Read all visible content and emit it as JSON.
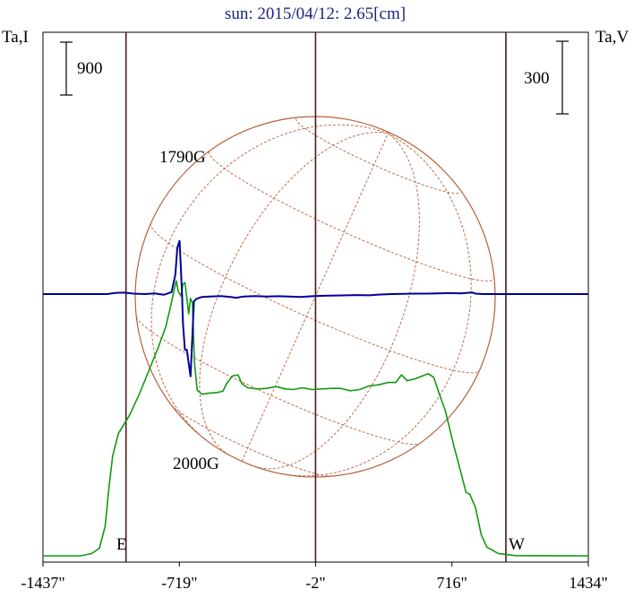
{
  "title": "sun: 2015/04/12: 2.65[cm]",
  "left_axis_label": "Ta,I",
  "right_axis_label": "Ta,V",
  "left_scale_bar": "900",
  "right_scale_bar": "300",
  "east_label": "E",
  "west_label": "W",
  "annotations": [
    "1790G",
    "2000G"
  ],
  "colors": {
    "intensity": "#119911",
    "polarization": "#000099",
    "grid_lines": "#4d1a14",
    "solar_disk": "#b5613a",
    "title": "#1a237e"
  },
  "chart_data": {
    "type": "line",
    "title": "sun: 2015/04/12: 2.65[cm]",
    "xlabel": "",
    "x_tick_labels": [
      "-1437\"",
      "-719\"",
      "-2\"",
      "716\"",
      "1434\""
    ],
    "xlim": [
      -1437,
      1434
    ],
    "series": [
      {
        "name": "Ta,I",
        "color": "#119911",
        "points": [
          [
            -1437,
            0
          ],
          [
            -1240,
            0
          ],
          [
            -1180,
            40
          ],
          [
            -1140,
            130
          ],
          [
            -1110,
            500
          ],
          [
            -1090,
            1150
          ],
          [
            -1070,
            1700
          ],
          [
            -1040,
            2080
          ],
          [
            -980,
            2400
          ],
          [
            -930,
            2750
          ],
          [
            -880,
            3150
          ],
          [
            -830,
            3550
          ],
          [
            -790,
            3900
          ],
          [
            -760,
            4320
          ],
          [
            -745,
            4550
          ],
          [
            -735,
            4680
          ],
          [
            -725,
            4500
          ],
          [
            -710,
            4420
          ],
          [
            -700,
            4620
          ],
          [
            -690,
            4650
          ],
          [
            -680,
            4400
          ],
          [
            -670,
            4120
          ],
          [
            -660,
            4380
          ],
          [
            -650,
            4310
          ],
          [
            -640,
            3300
          ],
          [
            -625,
            2820
          ],
          [
            -600,
            2750
          ],
          [
            -560,
            2770
          ],
          [
            -520,
            2780
          ],
          [
            -490,
            2800
          ],
          [
            -470,
            2930
          ],
          [
            -440,
            3060
          ],
          [
            -410,
            3080
          ],
          [
            -390,
            2930
          ],
          [
            -360,
            2860
          ],
          [
            -310,
            2840
          ],
          [
            -260,
            2850
          ],
          [
            -210,
            2880
          ],
          [
            -160,
            2840
          ],
          [
            -120,
            2830
          ],
          [
            -70,
            2860
          ],
          [
            -20,
            2830
          ],
          [
            30,
            2840
          ],
          [
            80,
            2850
          ],
          [
            130,
            2850
          ],
          [
            180,
            2810
          ],
          [
            230,
            2830
          ],
          [
            280,
            2890
          ],
          [
            330,
            2910
          ],
          [
            380,
            2950
          ],
          [
            420,
            2950
          ],
          [
            450,
            3080
          ],
          [
            480,
            2980
          ],
          [
            520,
            3010
          ],
          [
            560,
            3060
          ],
          [
            590,
            3100
          ],
          [
            620,
            3040
          ],
          [
            650,
            2750
          ],
          [
            680,
            2480
          ],
          [
            730,
            1820
          ],
          [
            760,
            1460
          ],
          [
            790,
            1080
          ],
          [
            810,
            1050
          ],
          [
            840,
            820
          ],
          [
            870,
            360
          ],
          [
            900,
            150
          ],
          [
            960,
            40
          ],
          [
            1050,
            5
          ],
          [
            1434,
            0
          ]
        ]
      },
      {
        "name": "Ta,V",
        "color": "#000099",
        "points": [
          [
            -1437,
            0
          ],
          [
            -1100,
            0
          ],
          [
            -1050,
            5
          ],
          [
            -1010,
            6
          ],
          [
            -960,
            2
          ],
          [
            -900,
            0
          ],
          [
            -850,
            3
          ],
          [
            -800,
            -3
          ],
          [
            -760,
            8
          ],
          [
            -740,
            80
          ],
          [
            -730,
            190
          ],
          [
            -718,
            220
          ],
          [
            -712,
            120
          ],
          [
            -705,
            0
          ],
          [
            -700,
            -120
          ],
          [
            -690,
            -230
          ],
          [
            -680,
            -230
          ],
          [
            -660,
            -340
          ],
          [
            -642,
            -30
          ],
          [
            -630,
            -20
          ],
          [
            -600,
            -12
          ],
          [
            -560,
            -10
          ],
          [
            -500,
            -8
          ],
          [
            -450,
            -12
          ],
          [
            -420,
            -15
          ],
          [
            -380,
            -10
          ],
          [
            -320,
            -8
          ],
          [
            -260,
            -10
          ],
          [
            -200,
            -9
          ],
          [
            -140,
            -10
          ],
          [
            -80,
            -12
          ],
          [
            -20,
            -9
          ],
          [
            40,
            -7
          ],
          [
            100,
            -6
          ],
          [
            160,
            -5
          ],
          [
            220,
            -4
          ],
          [
            280,
            -5
          ],
          [
            340,
            -2
          ],
          [
            400,
            0
          ],
          [
            460,
            1
          ],
          [
            520,
            2
          ],
          [
            580,
            2
          ],
          [
            640,
            3
          ],
          [
            700,
            4
          ],
          [
            760,
            3
          ],
          [
            800,
            5
          ],
          [
            820,
            7
          ],
          [
            840,
            2
          ],
          [
            880,
            0
          ],
          [
            1434,
            0
          ]
        ]
      }
    ],
    "scale_bars": {
      "Ta,I": 900,
      "Ta,V": 300
    },
    "vertical_markers": [
      -1000,
      -2,
      1000
    ],
    "grid": false,
    "legend": "none"
  }
}
